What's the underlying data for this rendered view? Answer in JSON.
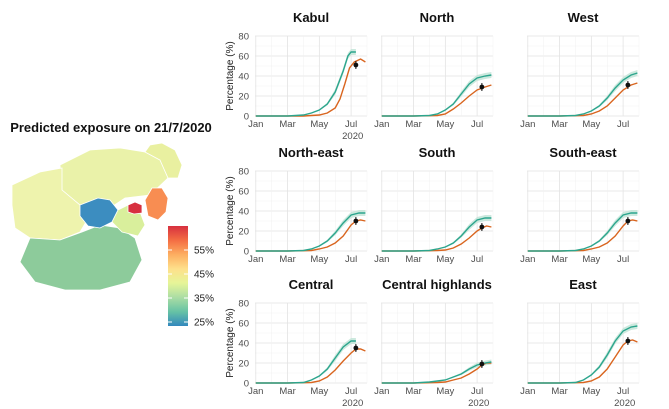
{
  "map": {
    "title": "Predicted exposure on 21/7/2020",
    "legend": {
      "ticks": [
        "55%",
        "45%",
        "35%",
        "25%"
      ],
      "colors": [
        "#d7303f",
        "#f46d43",
        "#fdae61",
        "#fee08b",
        "#e6f598",
        "#abdda4",
        "#66c2a5",
        "#3288bd"
      ]
    },
    "regions": [
      {
        "name": "North",
        "color": "#eaf2a9"
      },
      {
        "name": "West",
        "color": "#eef3ad"
      },
      {
        "name": "North-east",
        "color": "#e9f0a0"
      },
      {
        "name": "South",
        "color": "#8dcb9b"
      },
      {
        "name": "Central highlands",
        "color": "#3c8dc0"
      },
      {
        "name": "Central",
        "color": "#d9ef9c"
      },
      {
        "name": "East",
        "color": "#f88d52"
      },
      {
        "name": "Kabul",
        "color": "#d7303f"
      }
    ]
  },
  "chart_data": {
    "type": "line",
    "ylabel": "Percentage (%)",
    "x_ticks": [
      "Jan",
      "Mar",
      "May",
      "Jul"
    ],
    "year_label": "2020",
    "ylim": [
      0,
      80
    ],
    "y_ticks": [
      "0",
      "20",
      "40",
      "60",
      "80"
    ],
    "colors": {
      "upper": "#2ca58d",
      "lower": "#d9651f",
      "band": "#bfe3d6",
      "point": "#111111"
    },
    "panels": [
      {
        "title": "Kabul",
        "x_axis_label": true,
        "upper": [
          [
            1,
            0
          ],
          [
            2,
            0
          ],
          [
            3,
            0
          ],
          [
            3.5,
            0.5
          ],
          [
            4,
            1
          ],
          [
            4.5,
            3
          ],
          [
            5,
            6
          ],
          [
            5.5,
            12
          ],
          [
            6,
            24
          ],
          [
            6.5,
            45
          ],
          [
            6.8,
            60
          ],
          [
            7,
            64
          ],
          [
            7.3,
            64
          ]
        ],
        "lower": [
          [
            1,
            0
          ],
          [
            3,
            0
          ],
          [
            4,
            0
          ],
          [
            4.5,
            0.5
          ],
          [
            5,
            1
          ],
          [
            5.5,
            3
          ],
          [
            6,
            8
          ],
          [
            6.3,
            17
          ],
          [
            6.6,
            32
          ],
          [
            6.9,
            48
          ],
          [
            7.2,
            54
          ],
          [
            7.6,
            57
          ],
          [
            7.9,
            54
          ]
        ],
        "point": [
          7.3,
          51
        ]
      },
      {
        "title": "North",
        "x_axis_label": false,
        "upper": [
          [
            1,
            0
          ],
          [
            3,
            0
          ],
          [
            4,
            0.5
          ],
          [
            4.5,
            2
          ],
          [
            5,
            6
          ],
          [
            5.5,
            12
          ],
          [
            6,
            22
          ],
          [
            6.5,
            32
          ],
          [
            7,
            38
          ],
          [
            7.5,
            40
          ],
          [
            7.9,
            41
          ]
        ],
        "lower": [
          [
            1,
            0
          ],
          [
            3,
            0
          ],
          [
            4.5,
            0.5
          ],
          [
            5,
            2
          ],
          [
            5.5,
            7
          ],
          [
            6,
            13
          ],
          [
            6.5,
            20
          ],
          [
            7,
            26
          ],
          [
            7.5,
            29
          ],
          [
            7.9,
            31
          ]
        ],
        "point": [
          7.3,
          29
        ]
      },
      {
        "title": "West",
        "x_axis_label": false,
        "upper": [
          [
            1,
            0
          ],
          [
            3,
            0
          ],
          [
            4,
            0.5
          ],
          [
            4.5,
            2
          ],
          [
            5,
            5
          ],
          [
            5.5,
            10
          ],
          [
            6,
            18
          ],
          [
            6.5,
            28
          ],
          [
            7,
            36
          ],
          [
            7.5,
            41
          ],
          [
            7.9,
            43
          ]
        ],
        "lower": [
          [
            1,
            0
          ],
          [
            3,
            0
          ],
          [
            4.5,
            0.5
          ],
          [
            5,
            2
          ],
          [
            5.5,
            5
          ],
          [
            6,
            10
          ],
          [
            6.5,
            18
          ],
          [
            7,
            26
          ],
          [
            7.5,
            31
          ],
          [
            7.9,
            33
          ]
        ],
        "point": [
          7.3,
          31
        ]
      },
      {
        "title": "North-east",
        "x_axis_label": false,
        "upper": [
          [
            1,
            0
          ],
          [
            3,
            0
          ],
          [
            4,
            0.5
          ],
          [
            4.5,
            2
          ],
          [
            5,
            5
          ],
          [
            5.5,
            10
          ],
          [
            6,
            18
          ],
          [
            6.5,
            28
          ],
          [
            7,
            36
          ],
          [
            7.5,
            38
          ],
          [
            7.9,
            38
          ]
        ],
        "lower": [
          [
            1,
            0
          ],
          [
            3,
            0
          ],
          [
            4.5,
            0.5
          ],
          [
            5,
            2
          ],
          [
            5.5,
            4
          ],
          [
            6,
            8
          ],
          [
            6.5,
            15
          ],
          [
            7,
            26
          ],
          [
            7.3,
            30
          ],
          [
            7.6,
            31
          ],
          [
            7.9,
            30
          ]
        ],
        "point": [
          7.3,
          30
        ]
      },
      {
        "title": "South",
        "x_axis_label": false,
        "upper": [
          [
            1,
            0
          ],
          [
            3,
            0
          ],
          [
            4,
            0.5
          ],
          [
            4.5,
            2
          ],
          [
            5,
            4
          ],
          [
            5.5,
            8
          ],
          [
            6,
            15
          ],
          [
            6.5,
            24
          ],
          [
            7,
            31
          ],
          [
            7.5,
            33
          ],
          [
            7.9,
            33
          ]
        ],
        "lower": [
          [
            1,
            0
          ],
          [
            3,
            0
          ],
          [
            4.5,
            0.5
          ],
          [
            5,
            1
          ],
          [
            5.5,
            3
          ],
          [
            6,
            7
          ],
          [
            6.5,
            13
          ],
          [
            7,
            20
          ],
          [
            7.3,
            23
          ],
          [
            7.6,
            25
          ],
          [
            7.9,
            24
          ]
        ],
        "point": [
          7.3,
          24
        ]
      },
      {
        "title": "South-east",
        "x_axis_label": false,
        "upper": [
          [
            1,
            0
          ],
          [
            3,
            0
          ],
          [
            4,
            0.5
          ],
          [
            4.5,
            2
          ],
          [
            5,
            5
          ],
          [
            5.5,
            10
          ],
          [
            6,
            18
          ],
          [
            6.5,
            28
          ],
          [
            7,
            36
          ],
          [
            7.5,
            38
          ],
          [
            7.9,
            38
          ]
        ],
        "lower": [
          [
            1,
            0
          ],
          [
            3,
            0
          ],
          [
            4.5,
            0.5
          ],
          [
            5,
            2
          ],
          [
            5.5,
            4
          ],
          [
            6,
            8
          ],
          [
            6.5,
            15
          ],
          [
            7,
            25
          ],
          [
            7.3,
            30
          ],
          [
            7.6,
            31
          ],
          [
            7.9,
            30
          ]
        ],
        "point": [
          7.3,
          30
        ]
      },
      {
        "title": "Central",
        "x_axis_label": true,
        "upper": [
          [
            1,
            0
          ],
          [
            3,
            0
          ],
          [
            4,
            0.5
          ],
          [
            4.5,
            3
          ],
          [
            5,
            7
          ],
          [
            5.5,
            14
          ],
          [
            6,
            25
          ],
          [
            6.5,
            36
          ],
          [
            7,
            42
          ],
          [
            7.3,
            42
          ]
        ],
        "lower": [
          [
            1,
            0
          ],
          [
            3,
            0
          ],
          [
            4.5,
            0.5
          ],
          [
            5,
            2
          ],
          [
            5.5,
            6
          ],
          [
            6,
            13
          ],
          [
            6.5,
            22
          ],
          [
            7,
            30
          ],
          [
            7.3,
            34
          ],
          [
            7.6,
            34
          ],
          [
            7.9,
            32
          ]
        ],
        "point": [
          7.3,
          35
        ]
      },
      {
        "title": "Central highlands",
        "x_axis_label": true,
        "upper": [
          [
            1,
            0
          ],
          [
            3,
            0
          ],
          [
            4,
            1
          ],
          [
            4.5,
            2
          ],
          [
            5,
            3
          ],
          [
            5.5,
            6
          ],
          [
            6,
            9
          ],
          [
            6.5,
            14
          ],
          [
            7,
            18
          ],
          [
            7.5,
            20
          ],
          [
            7.9,
            21
          ]
        ],
        "lower": [
          [
            1,
            0
          ],
          [
            3,
            0
          ],
          [
            4.5,
            0.5
          ],
          [
            5,
            1
          ],
          [
            5.5,
            3
          ],
          [
            6,
            5
          ],
          [
            6.5,
            9
          ],
          [
            7,
            14
          ],
          [
            7.3,
            18
          ],
          [
            7.6,
            20
          ],
          [
            7.9,
            20
          ]
        ],
        "point": [
          7.3,
          19
        ]
      },
      {
        "title": "East",
        "x_axis_label": true,
        "upper": [
          [
            1,
            0
          ],
          [
            3,
            0
          ],
          [
            4,
            0.5
          ],
          [
            4.5,
            3
          ],
          [
            5,
            8
          ],
          [
            5.5,
            16
          ],
          [
            6,
            28
          ],
          [
            6.5,
            42
          ],
          [
            7,
            52
          ],
          [
            7.5,
            56
          ],
          [
            7.9,
            57
          ]
        ],
        "lower": [
          [
            1,
            0
          ],
          [
            3,
            0
          ],
          [
            4.5,
            0.5
          ],
          [
            5,
            2
          ],
          [
            5.5,
            6
          ],
          [
            6,
            14
          ],
          [
            6.5,
            26
          ],
          [
            7,
            38
          ],
          [
            7.3,
            42
          ],
          [
            7.6,
            43
          ],
          [
            7.9,
            41
          ]
        ],
        "point": [
          7.3,
          42
        ]
      }
    ]
  }
}
